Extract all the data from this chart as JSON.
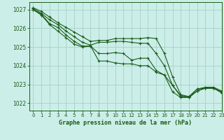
{
  "title": "Graphe pression niveau de la mer (hPa)",
  "bg_color": "#cceee8",
  "grid_color": "#aad4ce",
  "line_color": "#1a5c1a",
  "xlim": [
    -0.5,
    23
  ],
  "ylim": [
    1021.6,
    1027.4
  ],
  "yticks": [
    1022,
    1023,
    1024,
    1025,
    1026,
    1027
  ],
  "xticks": [
    0,
    1,
    2,
    3,
    4,
    5,
    6,
    7,
    8,
    9,
    10,
    11,
    12,
    13,
    14,
    15,
    16,
    17,
    18,
    19,
    20,
    21,
    22,
    23
  ],
  "series": [
    [
      1027.1,
      1026.9,
      1026.6,
      1026.3,
      1026.05,
      1025.8,
      1025.55,
      1025.3,
      1025.35,
      1025.35,
      1025.45,
      1025.45,
      1025.45,
      1025.45,
      1025.5,
      1025.45,
      1024.65,
      1023.4,
      1022.45,
      1022.35,
      1022.75,
      1022.85,
      1022.85,
      1022.65
    ],
    [
      1027.05,
      1026.8,
      1026.45,
      1026.2,
      1025.85,
      1025.55,
      1025.25,
      1025.1,
      1025.25,
      1025.25,
      1025.3,
      1025.3,
      1025.25,
      1025.2,
      1025.2,
      1024.65,
      1024.0,
      1022.95,
      1022.4,
      1022.35,
      1022.75,
      1022.8,
      1022.8,
      1022.6
    ],
    [
      1027.0,
      1026.75,
      1026.25,
      1026.05,
      1025.65,
      1025.3,
      1025.05,
      1025.05,
      1024.65,
      1024.65,
      1024.7,
      1024.65,
      1024.3,
      1024.4,
      1024.4,
      1023.75,
      1023.5,
      1022.95,
      1022.35,
      1022.3,
      1022.65,
      1022.8,
      1022.8,
      1022.55
    ],
    [
      1027.0,
      1026.7,
      1026.2,
      1025.85,
      1025.5,
      1025.15,
      1025.0,
      1025.05,
      1024.25,
      1024.25,
      1024.15,
      1024.1,
      1024.1,
      1024.0,
      1024.0,
      1023.65,
      1023.5,
      1022.6,
      1022.3,
      1022.3,
      1022.65,
      1022.8,
      1022.8,
      1022.55
    ]
  ]
}
